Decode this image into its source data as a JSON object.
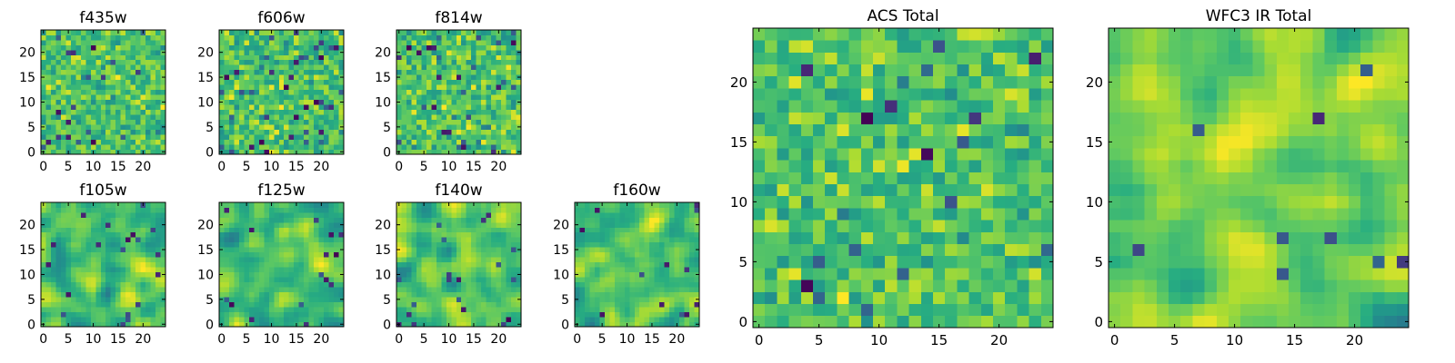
{
  "chart_data": {
    "type": "heatmap",
    "colormap": "viridis",
    "grid": false,
    "panels": [
      {
        "id": "f435w",
        "title": "f435w",
        "size": 25,
        "seed": 11,
        "smooth": 0,
        "low_density": 0.05,
        "xlim": [
          -0.5,
          24.5
        ],
        "ylim": [
          -0.5,
          24.5
        ],
        "xticks": [
          0,
          5,
          10,
          15,
          20
        ],
        "yticks": [
          0,
          5,
          10,
          15,
          20
        ],
        "xtick_labels": [
          "0",
          "5",
          "10",
          "15",
          "20"
        ],
        "ytick_labels": [
          "0",
          "5",
          "10",
          "15",
          "20"
        ]
      },
      {
        "id": "f606w",
        "title": "f606w",
        "size": 25,
        "seed": 23,
        "smooth": 0,
        "low_density": 0.05,
        "xlim": [
          -0.5,
          24.5
        ],
        "ylim": [
          -0.5,
          24.5
        ],
        "xticks": [
          0,
          5,
          10,
          15,
          20
        ],
        "yticks": [
          0,
          5,
          10,
          15,
          20
        ],
        "xtick_labels": [
          "0",
          "5",
          "10",
          "15",
          "20"
        ],
        "ytick_labels": [
          "0",
          "5",
          "10",
          "15",
          "20"
        ]
      },
      {
        "id": "f814w",
        "title": "f814w",
        "size": 25,
        "seed": 37,
        "smooth": 0,
        "low_density": 0.05,
        "xlim": [
          -0.5,
          24.5
        ],
        "ylim": [
          -0.5,
          24.5
        ],
        "xticks": [
          0,
          5,
          10,
          15,
          20
        ],
        "yticks": [
          0,
          5,
          10,
          15,
          20
        ],
        "xtick_labels": [
          "0",
          "5",
          "10",
          "15",
          "20"
        ],
        "ytick_labels": [
          "0",
          "5",
          "10",
          "15",
          "20"
        ]
      },
      {
        "id": "f105w",
        "title": "f105w",
        "size": 25,
        "seed": 41,
        "smooth": 2,
        "low_density": 0.03,
        "xlim": [
          -0.5,
          24.5
        ],
        "ylim": [
          -0.5,
          24.5
        ],
        "xticks": [
          0,
          5,
          10,
          15,
          20
        ],
        "yticks": [
          0,
          5,
          10,
          15,
          20
        ],
        "xtick_labels": [
          "0",
          "5",
          "10",
          "15",
          "20"
        ],
        "ytick_labels": [
          "0",
          "5",
          "10",
          "15",
          "20"
        ]
      },
      {
        "id": "f125w",
        "title": "f125w",
        "size": 25,
        "seed": 53,
        "smooth": 2,
        "low_density": 0.03,
        "xlim": [
          -0.5,
          24.5
        ],
        "ylim": [
          -0.5,
          24.5
        ],
        "xticks": [
          0,
          5,
          10,
          15,
          20
        ],
        "yticks": [
          0,
          5,
          10,
          15,
          20
        ],
        "xtick_labels": [
          "0",
          "5",
          "10",
          "15",
          "20"
        ],
        "ytick_labels": [
          "0",
          "5",
          "10",
          "15",
          "20"
        ]
      },
      {
        "id": "f140w",
        "title": "f140w",
        "size": 25,
        "seed": 67,
        "smooth": 2,
        "low_density": 0.03,
        "xlim": [
          -0.5,
          24.5
        ],
        "ylim": [
          -0.5,
          24.5
        ],
        "xticks": [
          0,
          5,
          10,
          15,
          20
        ],
        "yticks": [
          0,
          5,
          10,
          15,
          20
        ],
        "xtick_labels": [
          "0",
          "5",
          "10",
          "15",
          "20"
        ],
        "ytick_labels": [
          "0",
          "5",
          "10",
          "15",
          "20"
        ]
      },
      {
        "id": "f160w",
        "title": "f160w",
        "size": 25,
        "seed": 79,
        "smooth": 2,
        "low_density": 0.03,
        "xlim": [
          -0.5,
          24.5
        ],
        "ylim": [
          -0.5,
          24.5
        ],
        "xticks": [
          0,
          5,
          10,
          15,
          20
        ],
        "yticks": [
          0,
          5,
          10,
          15,
          20
        ],
        "xtick_labels": [
          "0",
          "5",
          "10",
          "15",
          "20"
        ],
        "ytick_labels": [
          "0",
          "5",
          "10",
          "15",
          "20"
        ]
      },
      {
        "id": "acs-total",
        "title": "ACS Total",
        "size": 25,
        "seed": 97,
        "smooth": 0,
        "low_density": 0.03,
        "xlim": [
          -0.5,
          24.5
        ],
        "ylim": [
          -0.5,
          24.5
        ],
        "xticks": [
          0,
          5,
          10,
          15,
          20
        ],
        "yticks": [
          0,
          5,
          10,
          15,
          20
        ],
        "xtick_labels": [
          "0",
          "5",
          "10",
          "15",
          "20"
        ],
        "ytick_labels": [
          "0",
          "5",
          "10",
          "15",
          "20"
        ]
      },
      {
        "id": "wfc3-ir-total",
        "title": "WFC3 IR Total",
        "size": 25,
        "seed": 113,
        "smooth": 2,
        "low_density": 0.02,
        "xlim": [
          -0.5,
          24.5
        ],
        "ylim": [
          -0.5,
          24.5
        ],
        "xticks": [
          0,
          5,
          10,
          15,
          20
        ],
        "yticks": [
          0,
          5,
          10,
          15,
          20
        ],
        "xtick_labels": [
          "0",
          "5",
          "10",
          "15",
          "20"
        ],
        "ytick_labels": [
          "0",
          "5",
          "10",
          "15",
          "20"
        ]
      }
    ]
  }
}
